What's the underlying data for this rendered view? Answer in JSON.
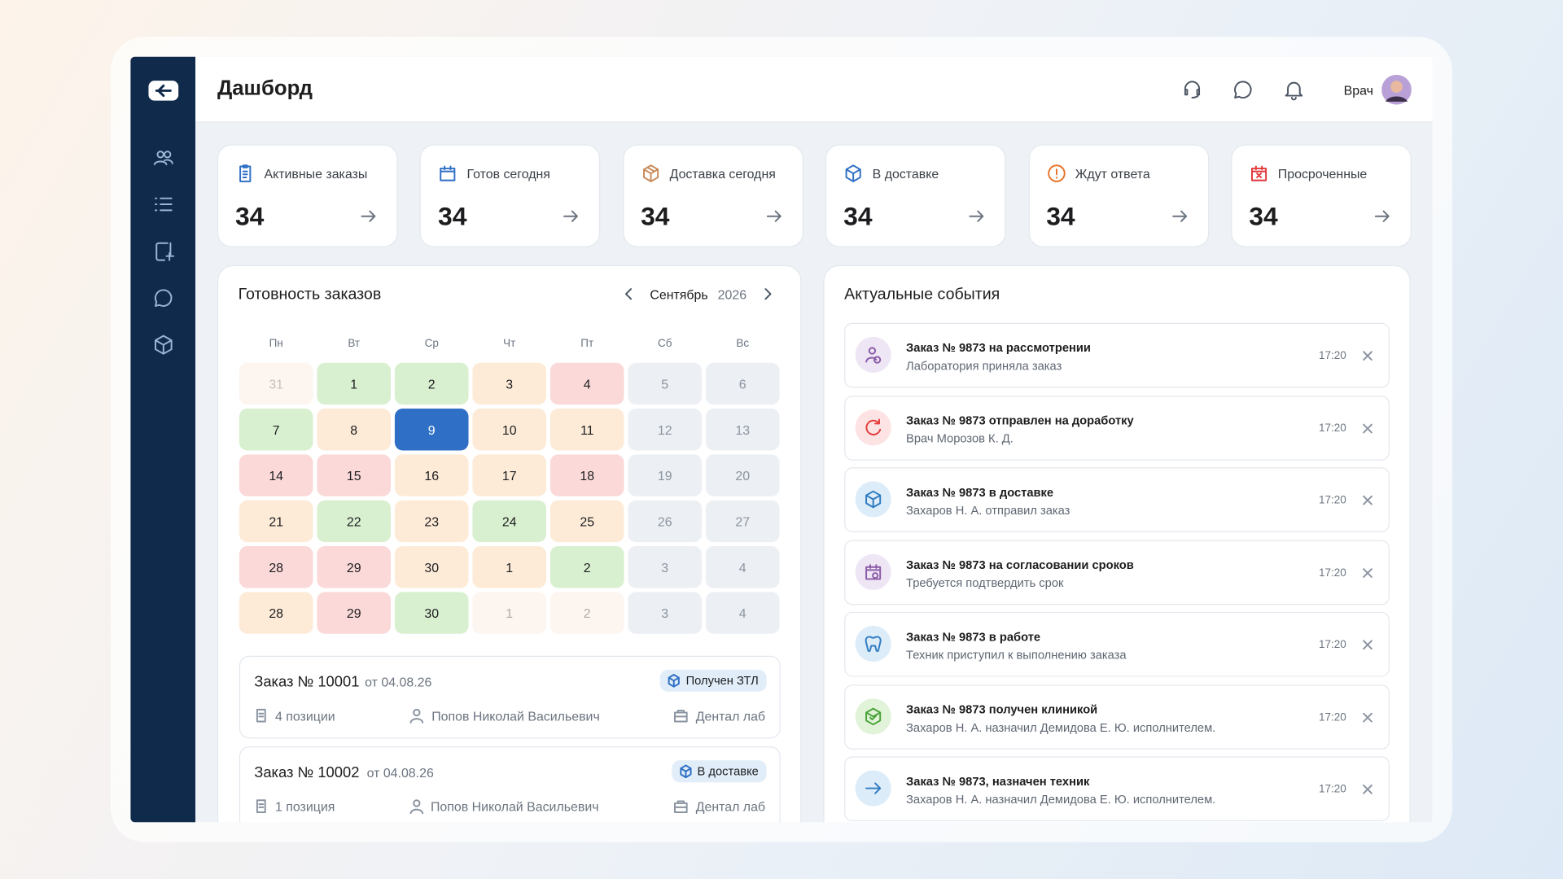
{
  "header": {
    "title": "Дашборд",
    "user": "Врач"
  },
  "stats": [
    {
      "label": "Активные заказы",
      "value": 34,
      "color": "#2f6fc5"
    },
    {
      "label": "Готов сегодня",
      "value": 34,
      "color": "#2f6fc5"
    },
    {
      "label": "Доставка сегодня",
      "value": 34,
      "color": "#c98a5a"
    },
    {
      "label": "В доставке",
      "value": 34,
      "color": "#2f6fc5"
    },
    {
      "label": "Ждут ответа",
      "value": 34,
      "color": "#e8742a"
    },
    {
      "label": "Просроченные",
      "value": 34,
      "color": "#e0383b"
    }
  ],
  "calendar": {
    "title": "Готовность заказов",
    "month": "Сентябрь",
    "year": 2026,
    "weekdays": [
      "Пн",
      "Вт",
      "Ср",
      "Чт",
      "Пт",
      "Сб",
      "Вс"
    ],
    "weeks": [
      [
        {
          "day": 31,
          "bg": "#fdf5f0",
          "fg": "#c4bdb8"
        },
        {
          "day": 1,
          "bg": "#d9f0d0",
          "fg": "#1d1d1f"
        },
        {
          "day": 2,
          "bg": "#d9f0d0",
          "fg": "#1d1d1f"
        },
        {
          "day": 3,
          "bg": "#fdebd8",
          "fg": "#1d1d1f"
        },
        {
          "day": 4,
          "bg": "#fbd9d9",
          "fg": "#1d1d1f"
        },
        {
          "day": 5,
          "bg": "#eceff3",
          "fg": "#8a94a0"
        },
        {
          "day": 6,
          "bg": "#eceff3",
          "fg": "#8a94a0"
        }
      ],
      [
        {
          "day": 7,
          "bg": "#d9f0d0",
          "fg": "#1d1d1f"
        },
        {
          "day": 8,
          "bg": "#fdebd8",
          "fg": "#1d1d1f"
        },
        {
          "day": 9,
          "bg": "#2f6fc5",
          "fg": "#ffffff"
        },
        {
          "day": 10,
          "bg": "#fdebd8",
          "fg": "#1d1d1f"
        },
        {
          "day": 11,
          "bg": "#fdebd8",
          "fg": "#1d1d1f"
        },
        {
          "day": 12,
          "bg": "#eceff3",
          "fg": "#8a94a0"
        },
        {
          "day": 13,
          "bg": "#eceff3",
          "fg": "#8a94a0"
        }
      ],
      [
        {
          "day": 14,
          "bg": "#fbd9d9",
          "fg": "#1d1d1f"
        },
        {
          "day": 15,
          "bg": "#fbd9d9",
          "fg": "#1d1d1f"
        },
        {
          "day": 16,
          "bg": "#fdebd8",
          "fg": "#1d1d1f"
        },
        {
          "day": 17,
          "bg": "#fdebd8",
          "fg": "#1d1d1f"
        },
        {
          "day": 18,
          "bg": "#fbd9d9",
          "fg": "#1d1d1f"
        },
        {
          "day": 19,
          "bg": "#eceff3",
          "fg": "#8a94a0"
        },
        {
          "day": 20,
          "bg": "#eceff3",
          "fg": "#8a94a0"
        }
      ],
      [
        {
          "day": 21,
          "bg": "#fdebd8",
          "fg": "#1d1d1f"
        },
        {
          "day": 22,
          "bg": "#d9f0d0",
          "fg": "#1d1d1f"
        },
        {
          "day": 23,
          "bg": "#fdebd8",
          "fg": "#1d1d1f"
        },
        {
          "day": 24,
          "bg": "#d9f0d0",
          "fg": "#1d1d1f"
        },
        {
          "day": 25,
          "bg": "#fdebd8",
          "fg": "#1d1d1f"
        },
        {
          "day": 26,
          "bg": "#eceff3",
          "fg": "#8a94a0"
        },
        {
          "day": 27,
          "bg": "#eceff3",
          "fg": "#8a94a0"
        }
      ],
      [
        {
          "day": 28,
          "bg": "#fbd9d9",
          "fg": "#1d1d1f"
        },
        {
          "day": 29,
          "bg": "#fbd9d9",
          "fg": "#1d1d1f"
        },
        {
          "day": 30,
          "bg": "#fdebd8",
          "fg": "#1d1d1f"
        },
        {
          "day": 1,
          "bg": "#fdebd8",
          "fg": "#1d1d1f"
        },
        {
          "day": 2,
          "bg": "#d9f0d0",
          "fg": "#1d1d1f"
        },
        {
          "day": 3,
          "bg": "#eceff3",
          "fg": "#8a94a0"
        },
        {
          "day": 4,
          "bg": "#eceff3",
          "fg": "#8a94a0"
        }
      ],
      [
        {
          "day": 28,
          "bg": "#fdebd8",
          "fg": "#1d1d1f"
        },
        {
          "day": 29,
          "bg": "#fbd9d9",
          "fg": "#1d1d1f"
        },
        {
          "day": 30,
          "bg": "#d9f0d0",
          "fg": "#1d1d1f"
        },
        {
          "day": 1,
          "bg": "#fdf5f0",
          "fg": "#b0aaa6"
        },
        {
          "day": 2,
          "bg": "#fdf5f0",
          "fg": "#b0aaa6"
        },
        {
          "day": 3,
          "bg": "#eceff3",
          "fg": "#8a94a0"
        },
        {
          "day": 4,
          "bg": "#eceff3",
          "fg": "#8a94a0"
        }
      ]
    ]
  },
  "orders": [
    {
      "number": "Заказ № 10001",
      "date": "от 04.08.26",
      "status": "Получен ЗТЛ",
      "positions": "4 позиции",
      "person": "Попов Николай Васильевич",
      "lab": "Дентал лаб"
    },
    {
      "number": "Заказ № 10002",
      "date": "от 04.08.26",
      "status": "В доставке",
      "positions": "1 позиция",
      "person": "Попов Николай Васильевич",
      "lab": "Дентал лаб"
    }
  ],
  "events": {
    "title": "Актуальные события",
    "items": [
      {
        "title": "Заказ № 9873 на рассмотрении",
        "subtitle": "Лаборатория приняла заказ",
        "time": "17:20",
        "color": "#8b5ca8",
        "bg": "#efe6f5"
      },
      {
        "title": "Заказ № 9873 отправлен на доработку",
        "subtitle": "Врач Морозов К. Д.",
        "time": "17:20",
        "color": "#e53b3b",
        "bg": "#fde3e3"
      },
      {
        "title": "Заказ № 9873 в доставке",
        "subtitle": "Захаров Н. А. отправил заказ",
        "time": "17:20",
        "color": "#2f7bc2",
        "bg": "#dcecf8"
      },
      {
        "title": "Заказ № 9873 на согласовании сроков",
        "subtitle": "Требуется подтвердить срок",
        "time": "17:20",
        "color": "#8b5ca8",
        "bg": "#efe6f5"
      },
      {
        "title": "Заказ № 9873 в работе",
        "subtitle": "Техник приступил к выполнению заказа",
        "time": "17:20",
        "color": "#2f7bc2",
        "bg": "#dcecf8"
      },
      {
        "title": "Заказ № 9873 получен клиникой",
        "subtitle": "Захаров Н. А. назначил Демидова Е. Ю. исполнителем.",
        "time": "17:20",
        "color": "#4aa33a",
        "bg": "#e1f3d9"
      },
      {
        "title": "Заказ № 9873, назначен техник",
        "subtitle": "Захаров Н. А. назначил Демидова Е. Ю. исполнителем.",
        "time": "17:20",
        "color": "#2f7bc2",
        "bg": "#dcecf8"
      }
    ]
  }
}
